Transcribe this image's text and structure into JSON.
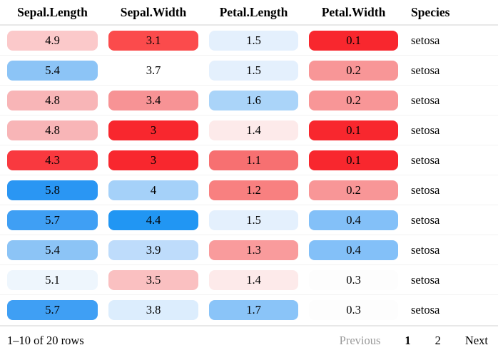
{
  "header": {
    "columns": [
      "Sepal.Length",
      "Sepal.Width",
      "Petal.Length",
      "Petal.Width",
      "Species"
    ]
  },
  "table": {
    "rows": [
      {
        "cells": [
          {
            "value": "4.9",
            "bg": "#fbc9ca"
          },
          {
            "value": "3.1",
            "bg": "#fb4b4c"
          },
          {
            "value": "1.5",
            "bg": "#e4f0fd"
          },
          {
            "value": "0.1",
            "bg": "#f8272e"
          }
        ],
        "species": "setosa"
      },
      {
        "cells": [
          {
            "value": "5.4",
            "bg": "#8cc4f6"
          },
          {
            "value": "3.7",
            "bg": "#ffffff"
          },
          {
            "value": "1.5",
            "bg": "#e4f0fd"
          },
          {
            "value": "0.2",
            "bg": "#f89697"
          }
        ],
        "species": "setosa"
      },
      {
        "cells": [
          {
            "value": "4.8",
            "bg": "#f8b5b7"
          },
          {
            "value": "3.4",
            "bg": "#f79395"
          },
          {
            "value": "1.6",
            "bg": "#aad4f9"
          },
          {
            "value": "0.2",
            "bg": "#f89697"
          }
        ],
        "species": "setosa"
      },
      {
        "cells": [
          {
            "value": "4.8",
            "bg": "#f8b5b7"
          },
          {
            "value": "3",
            "bg": "#f8272e"
          },
          {
            "value": "1.4",
            "bg": "#fdeaea"
          },
          {
            "value": "0.1",
            "bg": "#f8272e"
          }
        ],
        "species": "setosa"
      },
      {
        "cells": [
          {
            "value": "4.3",
            "bg": "#f9393f"
          },
          {
            "value": "3",
            "bg": "#f8272e"
          },
          {
            "value": "1.1",
            "bg": "#f77071"
          },
          {
            "value": "0.1",
            "bg": "#f8272e"
          }
        ],
        "species": "setosa"
      },
      {
        "cells": [
          {
            "value": "5.8",
            "bg": "#2a96f3"
          },
          {
            "value": "4",
            "bg": "#a5d1f9"
          },
          {
            "value": "1.2",
            "bg": "#f88080"
          },
          {
            "value": "0.2",
            "bg": "#f89697"
          }
        ],
        "species": "setosa"
      },
      {
        "cells": [
          {
            "value": "5.7",
            "bg": "#3f9ff4"
          },
          {
            "value": "4.4",
            "bg": "#2196f3"
          },
          {
            "value": "1.5",
            "bg": "#e4f0fd"
          },
          {
            "value": "0.4",
            "bg": "#83c0f8"
          }
        ],
        "species": "setosa"
      },
      {
        "cells": [
          {
            "value": "5.4",
            "bg": "#8cc4f6"
          },
          {
            "value": "3.9",
            "bg": "#bedcfb"
          },
          {
            "value": "1.3",
            "bg": "#f99b9c"
          },
          {
            "value": "0.4",
            "bg": "#83c0f8"
          }
        ],
        "species": "setosa"
      },
      {
        "cells": [
          {
            "value": "5.1",
            "bg": "#eef6fd"
          },
          {
            "value": "3.5",
            "bg": "#fac0c1"
          },
          {
            "value": "1.4",
            "bg": "#fdeaea"
          },
          {
            "value": "0.3",
            "bg": "#fdfdfd"
          }
        ],
        "species": "setosa"
      },
      {
        "cells": [
          {
            "value": "5.7",
            "bg": "#3f9ff4"
          },
          {
            "value": "3.8",
            "bg": "#dcedfd"
          },
          {
            "value": "1.7",
            "bg": "#8ac4f8"
          },
          {
            "value": "0.3",
            "bg": "#fdfdfd"
          }
        ],
        "species": "setosa"
      }
    ]
  },
  "footer": {
    "info": "1–10 of 20 rows",
    "previous": "Previous",
    "pages": [
      "1",
      "2"
    ],
    "current_page": "1",
    "next": "Next"
  },
  "colors": {
    "low_extreme_red": "#f8272e",
    "high_extreme_blue": "#2196f3",
    "midpoint": "#ffffff",
    "header_border": "#e8e8e8",
    "row_border": "#f3f3f3",
    "pagination_disabled_text": "#999999",
    "text": "#000000",
    "background": "#ffffff"
  }
}
